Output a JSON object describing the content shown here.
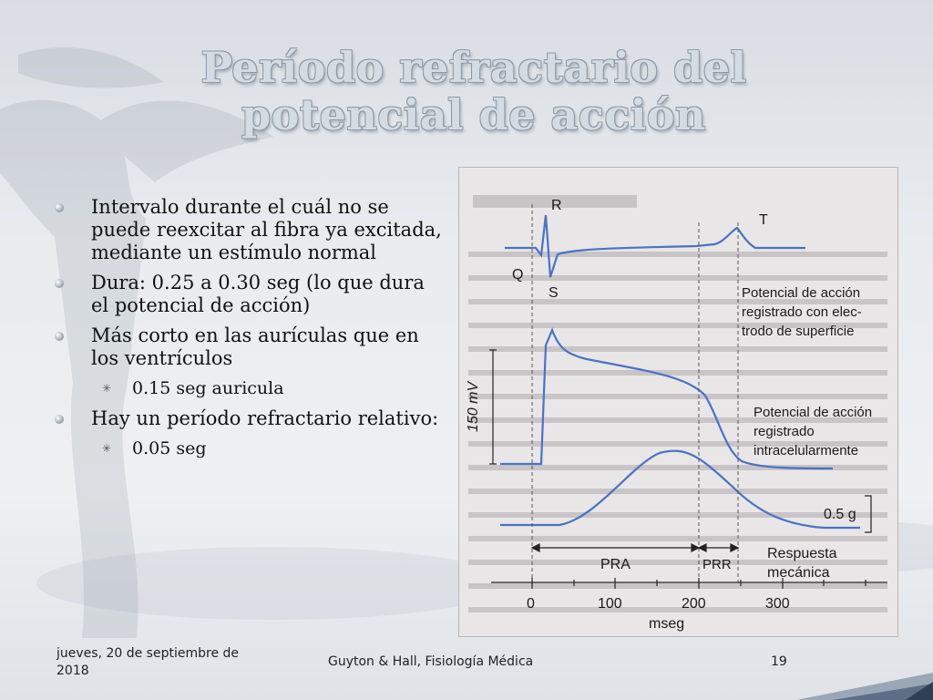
{
  "title": {
    "line1": "Período refractario del",
    "line2": "potencial de acción"
  },
  "bullets": [
    {
      "text": "Intervalo durante el cuál no se puede reexcitar al fibra ya excitada, mediante un estímulo normal"
    },
    {
      "text": "Dura: 0.25 a 0.30 seg (lo que dura el potencial de acción)"
    },
    {
      "text": "Más corto en las aurículas que en los ventrículos",
      "sub": "0.15 seg  auricula"
    },
    {
      "text": "Hay un período refractario relativo:",
      "sub": "0.05 seg"
    }
  ],
  "figure": {
    "labels": {
      "r": "R",
      "q": "Q",
      "s": "S",
      "t": "T",
      "surface_1": "Potencial de acción",
      "surface_2": "registrado con elec-",
      "surface_3": "trodo de superficie",
      "intra_1": "Potencial de acción",
      "intra_2": "registrado",
      "intra_3": "intracelularmente",
      "mv_scale": "150 mV",
      "force_scale": "0.5 g",
      "pra": "PRA",
      "prr": "PRR",
      "mech_1": "Respuesta",
      "mech_2": "mecánica",
      "xaxis_label": "mseg",
      "x_ticks": [
        "0",
        "100",
        "200",
        "300"
      ]
    },
    "line_color": "#4a72c4",
    "text_color": "#1a1a1a"
  },
  "footer": {
    "date": "jueves, 20 de septiembre de 2018",
    "source": "Guyton & Hall, Fisiología Médica",
    "page": "19"
  },
  "colors": {
    "title_fill": "#d4dbe3",
    "title_outline": "#8e9aa8",
    "background": "#e9ecef",
    "corner_accent": "#5c6f86"
  }
}
